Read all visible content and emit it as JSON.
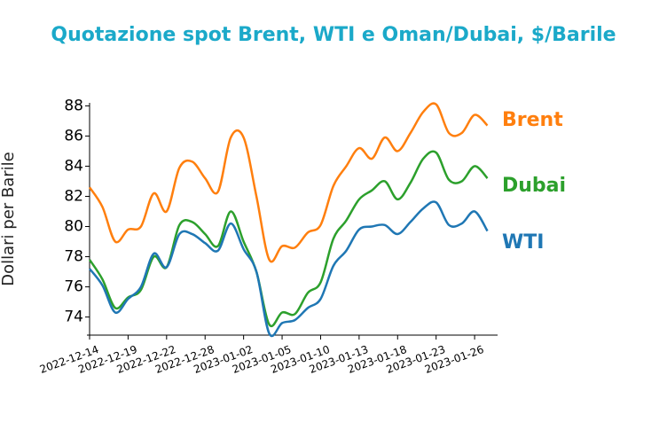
{
  "chart_data": {
    "type": "line",
    "title": "Quotazione spot Brent, WTI e Oman/Dubai, $/Barile",
    "y_label": "Dollari per Barile",
    "categories": [
      "2022-12-14",
      null,
      null,
      "2022-12-19",
      null,
      null,
      "2022-12-22",
      null,
      null,
      "2022-12-28",
      null,
      null,
      "2023-01-02",
      null,
      null,
      "2023-01-05",
      null,
      null,
      "2023-01-10",
      null,
      null,
      "2023-01-13",
      null,
      null,
      "2023-01-18",
      null,
      null,
      "2023-01-23",
      null,
      null,
      "2023-01-26",
      null
    ],
    "series": [
      {
        "name": "Brent",
        "color": "#ff7f0e",
        "values": [
          82.6,
          81.3,
          79.0,
          79.8,
          80.0,
          82.2,
          81.0,
          83.9,
          84.3,
          83.2,
          82.3,
          85.9,
          85.9,
          82.0,
          77.8,
          78.7,
          78.6,
          79.6,
          80.1,
          82.7,
          84.0,
          85.2,
          84.5,
          85.9,
          85.0,
          86.2,
          87.6,
          88.1,
          86.2,
          86.2,
          87.4,
          86.7
        ]
      },
      {
        "name": "Dubai",
        "color": "#2ca02c",
        "values": [
          77.8,
          76.5,
          74.6,
          75.3,
          75.8,
          78.0,
          77.3,
          80.1,
          80.3,
          79.5,
          78.7,
          81.0,
          79.0,
          77.0,
          73.5,
          74.3,
          74.2,
          75.6,
          76.3,
          79.2,
          80.4,
          81.8,
          82.4,
          83.0,
          81.8,
          82.9,
          84.5,
          84.9,
          83.1,
          83.0,
          84.0,
          83.2
        ]
      },
      {
        "name": "WTI",
        "color": "#1f77b4",
        "values": [
          77.2,
          76.1,
          74.3,
          75.2,
          76.0,
          78.2,
          77.3,
          79.5,
          79.5,
          78.9,
          78.4,
          80.2,
          78.5,
          77.0,
          72.9,
          73.6,
          73.8,
          74.6,
          75.2,
          77.4,
          78.4,
          79.8,
          80.0,
          80.1,
          79.5,
          80.3,
          81.2,
          81.6,
          80.1,
          80.2,
          81.0,
          79.7
        ]
      }
    ],
    "ylim": [
      72.8,
      88.2
    ],
    "yticks": [
      74,
      76,
      78,
      80,
      82,
      84,
      86,
      88
    ],
    "grid": false
  }
}
